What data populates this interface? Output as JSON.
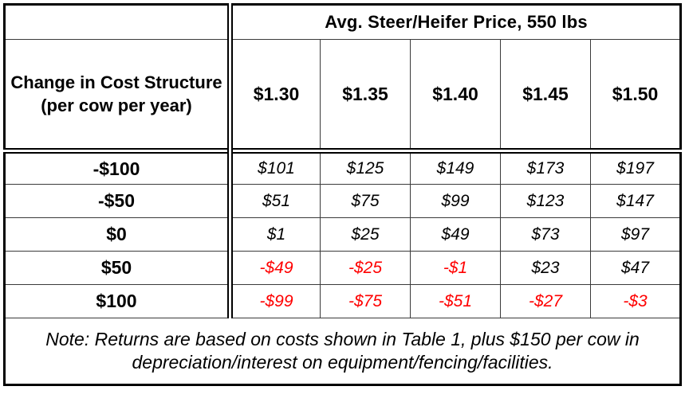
{
  "colors": {
    "negative_value": "#ff0000",
    "text": "#000000",
    "border": "#000000",
    "background": "#ffffff"
  },
  "table": {
    "corner_label": "",
    "price_group_header": "Avg. Steer/Heifer Price, 550 lbs",
    "row_group_header": "Change in Cost Structure (per cow per year)",
    "price_columns": [
      "$1.30",
      "$1.35",
      "$1.40",
      "$1.45",
      "$1.50"
    ],
    "rows": [
      {
        "label": "-$100",
        "values": [
          "$101",
          "$125",
          "$149",
          "$173",
          "$197"
        ]
      },
      {
        "label": "-$50",
        "values": [
          "$51",
          "$75",
          "$99",
          "$123",
          "$147"
        ]
      },
      {
        "label": "$0",
        "values": [
          "$1",
          "$25",
          "$49",
          "$73",
          "$97"
        ]
      },
      {
        "label": "$50",
        "values": [
          "-$49",
          "-$25",
          "-$1",
          "$23",
          "$47"
        ]
      },
      {
        "label": "$100",
        "values": [
          "-$99",
          "-$75",
          "-$51",
          "-$27",
          "-$3"
        ]
      }
    ],
    "note": "Note: Returns are based on costs shown in Table 1, plus $150 per cow in depreciation/interest on equipment/fencing/facilities."
  }
}
